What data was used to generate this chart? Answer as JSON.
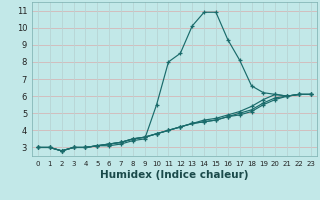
{
  "bg_color": "#c2e8e8",
  "grid_color_h": "#d4b8b8",
  "grid_color_v": "#b8d4d4",
  "line_color": "#1a6b6b",
  "xlabel": "Humidex (Indice chaleur)",
  "xlabel_fontsize": 7.5,
  "xlim": [
    -0.5,
    23.5
  ],
  "ylim": [
    2.5,
    11.5
  ],
  "xticks": [
    0,
    1,
    2,
    3,
    4,
    5,
    6,
    7,
    8,
    9,
    10,
    11,
    12,
    13,
    14,
    15,
    16,
    17,
    18,
    19,
    20,
    21,
    22,
    23
  ],
  "yticks": [
    3,
    4,
    5,
    6,
    7,
    8,
    9,
    10,
    11
  ],
  "lines": [
    {
      "x": [
        0,
        1,
        2,
        3,
        4,
        5,
        6,
        7,
        8,
        9,
        10,
        11,
        12,
        13,
        14,
        15,
        16,
        17,
        18,
        19,
        20,
        21,
        22,
        23
      ],
      "y": [
        3.0,
        3.0,
        2.8,
        3.0,
        3.0,
        3.1,
        3.1,
        3.2,
        3.4,
        3.5,
        5.5,
        8.0,
        8.5,
        10.1,
        10.9,
        10.9,
        9.3,
        8.1,
        6.6,
        6.2,
        6.1,
        6.0,
        6.1,
        6.1
      ]
    },
    {
      "x": [
        0,
        1,
        2,
        3,
        4,
        5,
        6,
        7,
        8,
        9,
        10,
        11,
        12,
        13,
        14,
        15,
        16,
        17,
        18,
        19,
        20,
        21,
        22,
        23
      ],
      "y": [
        3.0,
        3.0,
        2.8,
        3.0,
        3.0,
        3.1,
        3.2,
        3.3,
        3.5,
        3.6,
        3.8,
        4.0,
        4.2,
        4.4,
        4.6,
        4.7,
        4.9,
        5.1,
        5.4,
        5.8,
        6.1,
        6.0,
        6.1,
        6.1
      ]
    },
    {
      "x": [
        0,
        1,
        2,
        3,
        4,
        5,
        6,
        7,
        8,
        9,
        10,
        11,
        12,
        13,
        14,
        15,
        16,
        17,
        18,
        19,
        20,
        21,
        22,
        23
      ],
      "y": [
        3.0,
        3.0,
        2.8,
        3.0,
        3.0,
        3.1,
        3.2,
        3.3,
        3.5,
        3.6,
        3.8,
        4.0,
        4.2,
        4.4,
        4.5,
        4.6,
        4.8,
        5.0,
        5.2,
        5.6,
        5.9,
        6.0,
        6.1,
        6.1
      ]
    },
    {
      "x": [
        0,
        1,
        2,
        3,
        4,
        5,
        6,
        7,
        8,
        9,
        10,
        11,
        12,
        13,
        14,
        15,
        16,
        17,
        18,
        19,
        20,
        21,
        22,
        23
      ],
      "y": [
        3.0,
        3.0,
        2.8,
        3.0,
        3.0,
        3.1,
        3.2,
        3.3,
        3.5,
        3.6,
        3.8,
        4.0,
        4.2,
        4.4,
        4.5,
        4.6,
        4.8,
        4.9,
        5.1,
        5.5,
        5.8,
        6.0,
        6.1,
        6.1
      ]
    }
  ]
}
